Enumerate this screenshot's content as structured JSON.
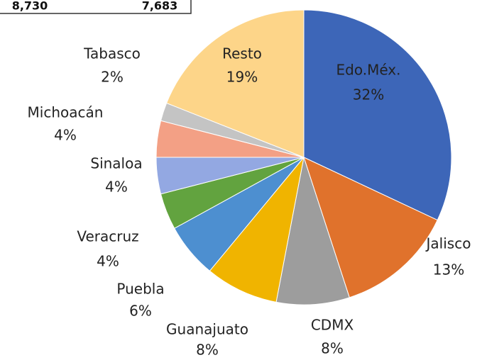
{
  "table": {
    "row": [
      "8,730",
      "7,683"
    ]
  },
  "chart_data": {
    "type": "pie",
    "categories": [
      "Edo.Méx.",
      "Jalisco",
      "CDMX",
      "Guanajuato",
      "Puebla",
      "Veracruz",
      "Sinaloa",
      "Michoacán",
      "Tabasco",
      "Resto"
    ],
    "values": [
      32,
      13,
      8,
      8,
      6,
      4,
      4,
      4,
      2,
      19
    ],
    "value_labels": [
      "32%",
      "13%",
      "8%",
      "8%",
      "6%",
      "4%",
      "4%",
      "4%",
      "2%",
      "19%"
    ],
    "colors": [
      "#3d66b8",
      "#e0722c",
      "#9d9d9d",
      "#f0b400",
      "#4d8fd0",
      "#62a33f",
      "#93a8e2",
      "#f3a085",
      "#c4c4c4",
      "#fdd589"
    ]
  }
}
